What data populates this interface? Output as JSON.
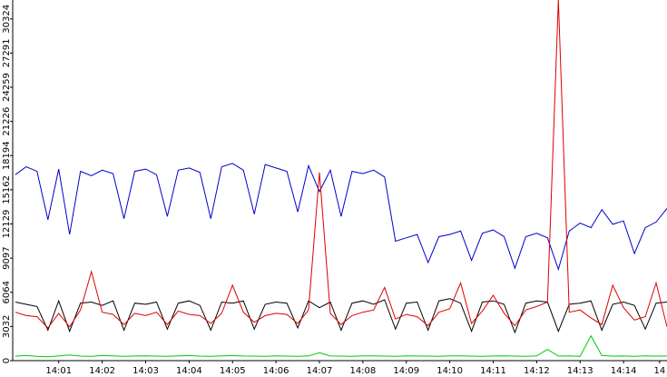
{
  "chart_data": {
    "type": "line",
    "x": [
      0,
      0.25,
      0.5,
      0.75,
      1,
      1.25,
      1.5,
      1.75,
      2,
      2.25,
      2.5,
      2.75,
      3,
      3.25,
      3.5,
      3.75,
      4,
      4.25,
      4.5,
      4.75,
      5,
      5.25,
      5.5,
      5.75,
      6,
      6.25,
      6.5,
      6.75,
      7,
      7.25,
      7.5,
      7.75,
      8,
      8.25,
      8.5,
      8.75,
      9,
      9.25,
      9.5,
      9.75,
      10,
      10.25,
      10.5,
      10.75,
      11,
      11.25,
      11.5,
      11.75,
      12,
      12.25,
      12.5,
      12.75,
      13,
      13.25,
      13.5,
      13.75,
      14,
      14.25,
      14.5,
      14.75,
      15
    ],
    "series": [
      {
        "color": "#0000cc",
        "values": [
          16500,
          17200,
          16800,
          12500,
          17000,
          11200,
          16800,
          16400,
          16900,
          16600,
          12600,
          16800,
          17000,
          16500,
          12800,
          16900,
          17100,
          16700,
          12600,
          17200,
          17500,
          16900,
          13000,
          17400,
          17100,
          16800,
          13200,
          17300,
          15000,
          16900,
          12800,
          16800,
          16600,
          16900,
          16300,
          10600,
          10900,
          11200,
          8700,
          11000,
          11200,
          11500,
          8900,
          11300,
          11600,
          11000,
          8200,
          11000,
          11300,
          10900,
          8100,
          11500,
          12200,
          11800,
          13400,
          12100,
          12400,
          9500,
          11800,
          12300,
          13500
        ]
      },
      {
        "color": "#000000",
        "values": [
          5200,
          5000,
          4800,
          2700,
          5300,
          2600,
          5100,
          5200,
          4900,
          5300,
          2700,
          5100,
          5000,
          5200,
          2800,
          5100,
          5300,
          4900,
          2700,
          5200,
          5100,
          5300,
          2800,
          5000,
          5200,
          5100,
          2900,
          5300,
          4700,
          5200,
          2700,
          5100,
          5300,
          5000,
          5400,
          2800,
          5100,
          5200,
          2700,
          5300,
          5500,
          5100,
          2600,
          5200,
          5300,
          5000,
          2500,
          5100,
          5300,
          5200,
          2600,
          5000,
          5100,
          5300,
          2700,
          5000,
          5200,
          4900,
          2800,
          5100,
          5200
        ]
      },
      {
        "color": "#dd0000",
        "values": [
          4300,
          4000,
          3900,
          2900,
          4200,
          3000,
          4500,
          7900,
          4300,
          4100,
          3200,
          4200,
          4000,
          4300,
          3200,
          4400,
          4100,
          4000,
          3300,
          4200,
          6700,
          4300,
          3400,
          4000,
          4200,
          4100,
          3300,
          4500,
          16700,
          4200,
          3200,
          4000,
          4300,
          4500,
          6500,
          3700,
          4100,
          3900,
          3100,
          4300,
          4600,
          6900,
          3300,
          4400,
          5800,
          4200,
          3100,
          4500,
          4800,
          5200,
          32000,
          4300,
          4500,
          3800,
          3200,
          6700,
          4700,
          3600,
          3900,
          6900,
          3000
        ]
      },
      {
        "color": "#00cc00",
        "values": [
          400,
          450,
          380,
          350,
          420,
          500,
          400,
          380,
          450,
          420,
          390,
          410,
          430,
          400,
          380,
          420,
          450,
          400,
          390,
          420,
          440,
          410,
          400,
          380,
          420,
          400,
          390,
          420,
          700,
          410,
          400,
          380,
          420,
          430,
          400,
          390,
          420,
          410,
          400,
          380,
          430,
          420,
          400,
          390,
          410,
          420,
          400,
          390,
          420,
          1000,
          400,
          420,
          380,
          2200,
          450,
          400,
          410,
          390,
          420,
          400,
          410
        ]
      }
    ],
    "xlim": [
      -0.06,
      15.0
    ],
    "xticks": [
      {
        "value": 1,
        "label": "14:01"
      },
      {
        "value": 2,
        "label": "14:02"
      },
      {
        "value": 3,
        "label": "14:03"
      },
      {
        "value": 4,
        "label": "14:04"
      },
      {
        "value": 5,
        "label": "14:05"
      },
      {
        "value": 6,
        "label": "14:06"
      },
      {
        "value": 7,
        "label": "14:07"
      },
      {
        "value": 8,
        "label": "14:08"
      },
      {
        "value": 9,
        "label": "14:09"
      },
      {
        "value": 10,
        "label": "14:10"
      },
      {
        "value": 11,
        "label": "14:11"
      },
      {
        "value": 12,
        "label": "14:12"
      },
      {
        "value": 13,
        "label": "14:13"
      },
      {
        "value": 14,
        "label": "14:14"
      },
      {
        "value": 14.83,
        "label": "14"
      }
    ],
    "ylim": [
      0,
      32000
    ],
    "yticks": [
      0,
      3032,
      6064,
      9097,
      12129,
      15162,
      18194,
      21226,
      24259,
      27291,
      30324
    ]
  }
}
